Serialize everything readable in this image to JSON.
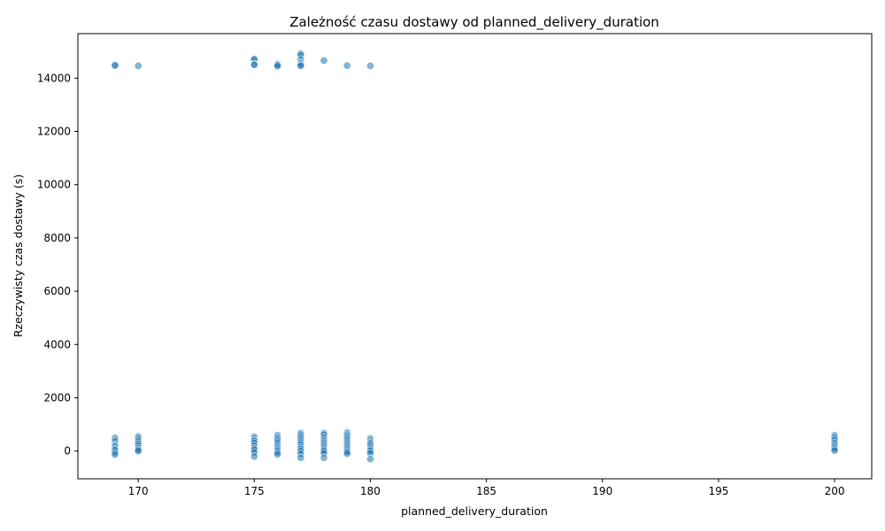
{
  "chart_data": {
    "type": "scatter",
    "title": "Zależność czasu dostawy od planned_delivery_duration",
    "xlabel": "planned_delivery_duration",
    "ylabel": "Rzeczywisty czas dostawy (s)",
    "xlim": [
      167.4,
      201.6
    ],
    "ylim": [
      -1040,
      15670
    ],
    "x_ticks": [
      170,
      175,
      180,
      185,
      190,
      195,
      200
    ],
    "y_ticks": [
      0,
      2000,
      4000,
      6000,
      8000,
      10000,
      12000,
      14000
    ],
    "grid": false,
    "point_color": "#1f77b4",
    "series": [
      {
        "x": [
          169,
          169,
          169,
          169,
          169,
          169,
          169,
          169,
          169,
          169,
          169,
          169,
          170,
          170,
          170,
          170,
          170,
          170,
          170,
          170,
          170,
          170,
          175,
          175,
          175,
          175,
          175,
          175,
          175,
          175,
          175,
          175,
          175,
          175,
          175,
          175,
          176,
          176,
          176,
          176,
          176,
          176,
          176,
          176,
          176,
          176,
          176,
          176,
          176,
          176,
          177,
          177,
          177,
          177,
          177,
          177,
          177,
          177,
          177,
          177,
          177,
          177,
          177,
          177,
          177,
          177,
          177,
          177,
          178,
          178,
          178,
          178,
          178,
          178,
          178,
          178,
          178,
          178,
          178,
          178,
          178,
          179,
          179,
          179,
          179,
          179,
          179,
          179,
          179,
          179,
          179,
          179,
          179,
          179,
          180,
          180,
          180,
          180,
          180,
          180,
          180,
          180,
          180,
          180,
          180,
          180,
          200,
          200,
          200,
          200,
          200,
          200,
          200,
          200,
          200
        ],
        "y": [
          14500,
          14470,
          500,
          420,
          350,
          250,
          200,
          150,
          80,
          30,
          -50,
          -130,
          14460,
          550,
          500,
          420,
          350,
          280,
          200,
          100,
          50,
          0,
          14720,
          14700,
          14520,
          14500,
          550,
          500,
          420,
          380,
          300,
          200,
          100,
          50,
          -50,
          -200,
          14530,
          14500,
          14450,
          600,
          520,
          450,
          380,
          300,
          220,
          150,
          80,
          20,
          -50,
          -120,
          14920,
          14870,
          14700,
          14560,
          14500,
          14460,
          680,
          620,
          550,
          480,
          400,
          320,
          250,
          150,
          80,
          0,
          -100,
          -250,
          14660,
          680,
          620,
          500,
          400,
          320,
          250,
          180,
          100,
          50,
          0,
          -80,
          -250,
          14470,
          700,
          620,
          550,
          480,
          400,
          320,
          250,
          180,
          100,
          30,
          -30,
          -100,
          14460,
          480,
          420,
          350,
          300,
          250,
          180,
          100,
          50,
          0,
          -80,
          -300,
          600,
          550,
          480,
          400,
          300,
          220,
          150,
          80,
          20
        ]
      }
    ]
  }
}
